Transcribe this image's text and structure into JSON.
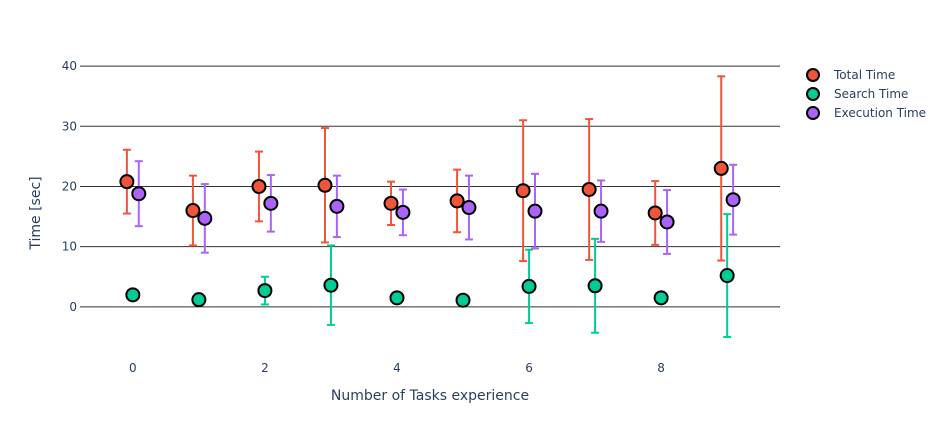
{
  "chart_data": {
    "type": "scatter",
    "xlabel": "Number of Tasks experience",
    "ylabel": "Time [sec]",
    "xlim": [
      -0.8,
      9.8
    ],
    "ylim": [
      -7.5,
      45
    ],
    "x_ticks": [
      0,
      2,
      4,
      6,
      8
    ],
    "y_ticks": [
      0,
      10,
      20,
      30,
      40
    ],
    "grid": true,
    "legend_position": "top-right",
    "x": [
      0,
      1,
      2,
      3,
      4,
      5,
      6,
      7,
      8,
      9
    ],
    "series": [
      {
        "name": "Total Time",
        "color": "#EF553B",
        "offset": -0.09,
        "values": [
          20.8,
          16.0,
          20.0,
          20.2,
          17.2,
          17.6,
          19.3,
          19.5,
          15.6,
          23.0
        ],
        "error": [
          5.3,
          5.8,
          5.8,
          9.5,
          3.6,
          5.2,
          11.7,
          11.7,
          5.3,
          15.3
        ]
      },
      {
        "name": "Search Time",
        "color": "#00CC96",
        "offset": 0.0,
        "values": [
          2.0,
          1.2,
          2.7,
          3.6,
          1.5,
          1.1,
          3.4,
          3.5,
          1.5,
          5.2
        ],
        "error": [
          0,
          0,
          2.3,
          6.6,
          0,
          0,
          6.1,
          7.8,
          0,
          10.2
        ]
      },
      {
        "name": "Execution Time",
        "color": "#AB63FA",
        "offset": 0.09,
        "values": [
          18.8,
          14.7,
          17.2,
          16.7,
          15.7,
          16.5,
          15.9,
          15.9,
          14.1,
          17.8
        ],
        "error": [
          5.4,
          5.7,
          4.7,
          5.1,
          3.8,
          5.3,
          6.2,
          5.1,
          5.3,
          5.8
        ]
      }
    ]
  }
}
